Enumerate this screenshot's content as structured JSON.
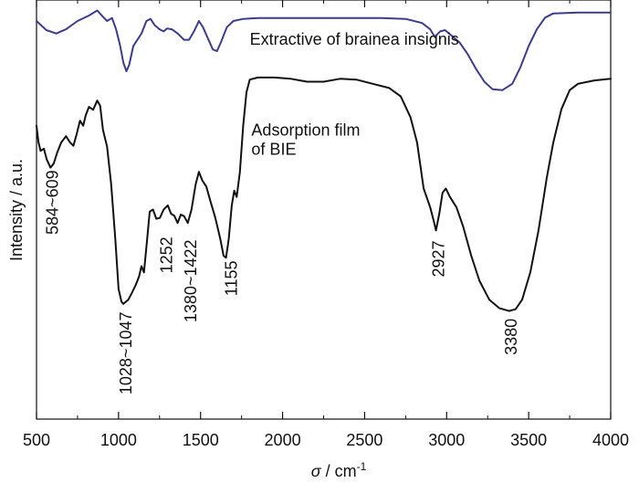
{
  "chart_data": {
    "type": "line",
    "title": "",
    "xlabel": "σ / cm",
    "xlabel_symbol": "σ",
    "xlabel_unit": " / cm",
    "xlabel_sup": "-1",
    "ylabel": "Intensity / a.u.",
    "xlim": [
      500,
      4000
    ],
    "x_ticks": [
      500,
      1000,
      1500,
      2000,
      2500,
      3000,
      3500,
      4000
    ],
    "y_ticks": [],
    "ylim": [
      0,
      1
    ],
    "grid": false,
    "series": [
      {
        "color": "#3c3c8f",
        "points": [
          [
            500,
            0.95
          ],
          [
            560,
            0.928
          ],
          [
            620,
            0.92
          ],
          [
            680,
            0.93
          ],
          [
            750,
            0.95
          ],
          [
            820,
            0.963
          ],
          [
            870,
            0.975
          ],
          [
            900,
            0.962
          ],
          [
            930,
            0.95
          ],
          [
            960,
            0.957
          ],
          [
            985,
            0.93
          ],
          [
            1010,
            0.89
          ],
          [
            1030,
            0.85
          ],
          [
            1048,
            0.83
          ],
          [
            1065,
            0.845
          ],
          [
            1090,
            0.89
          ],
          [
            1115,
            0.905
          ],
          [
            1140,
            0.92
          ],
          [
            1170,
            0.95
          ],
          [
            1195,
            0.955
          ],
          [
            1220,
            0.94
          ],
          [
            1250,
            0.93
          ],
          [
            1275,
            0.925
          ],
          [
            1295,
            0.932
          ],
          [
            1325,
            0.93
          ],
          [
            1360,
            0.92
          ],
          [
            1400,
            0.905
          ],
          [
            1430,
            0.905
          ],
          [
            1460,
            0.925
          ],
          [
            1490,
            0.95
          ],
          [
            1515,
            0.935
          ],
          [
            1545,
            0.908
          ],
          [
            1575,
            0.882
          ],
          [
            1600,
            0.878
          ],
          [
            1625,
            0.9
          ],
          [
            1660,
            0.935
          ],
          [
            1700,
            0.95
          ],
          [
            1760,
            0.955
          ],
          [
            1850,
            0.957
          ],
          [
            2000,
            0.957
          ],
          [
            2200,
            0.957
          ],
          [
            2400,
            0.957
          ],
          [
            2600,
            0.957
          ],
          [
            2750,
            0.955
          ],
          [
            2850,
            0.945
          ],
          [
            2900,
            0.93
          ],
          [
            2927,
            0.912
          ],
          [
            2960,
            0.925
          ],
          [
            2990,
            0.928
          ],
          [
            3030,
            0.915
          ],
          [
            3080,
            0.898
          ],
          [
            3130,
            0.87
          ],
          [
            3180,
            0.835
          ],
          [
            3230,
            0.805
          ],
          [
            3280,
            0.787
          ],
          [
            3340,
            0.785
          ],
          [
            3400,
            0.8
          ],
          [
            3450,
            0.84
          ],
          [
            3500,
            0.89
          ],
          [
            3550,
            0.93
          ],
          [
            3600,
            0.958
          ],
          [
            3650,
            0.968
          ],
          [
            3800,
            0.97
          ],
          [
            4000,
            0.97
          ]
        ]
      },
      {
        "color": "#111111",
        "points": [
          [
            500,
            0.7
          ],
          [
            512,
            0.66
          ],
          [
            525,
            0.64
          ],
          [
            545,
            0.645
          ],
          [
            562,
            0.62
          ],
          [
            585,
            0.6
          ],
          [
            605,
            0.61
          ],
          [
            625,
            0.635
          ],
          [
            650,
            0.66
          ],
          [
            680,
            0.675
          ],
          [
            705,
            0.66
          ],
          [
            725,
            0.652
          ],
          [
            745,
            0.68
          ],
          [
            765,
            0.712
          ],
          [
            785,
            0.7
          ],
          [
            800,
            0.725
          ],
          [
            820,
            0.745
          ],
          [
            845,
            0.738
          ],
          [
            870,
            0.76
          ],
          [
            888,
            0.748
          ],
          [
            905,
            0.69
          ],
          [
            930,
            0.65
          ],
          [
            955,
            0.56
          ],
          [
            980,
            0.43
          ],
          [
            1000,
            0.31
          ],
          [
            1018,
            0.28
          ],
          [
            1030,
            0.275
          ],
          [
            1045,
            0.28
          ],
          [
            1060,
            0.285
          ],
          [
            1080,
            0.3
          ],
          [
            1105,
            0.32
          ],
          [
            1125,
            0.34
          ],
          [
            1140,
            0.365
          ],
          [
            1155,
            0.35
          ],
          [
            1172,
            0.42
          ],
          [
            1190,
            0.495
          ],
          [
            1210,
            0.5
          ],
          [
            1230,
            0.478
          ],
          [
            1252,
            0.48
          ],
          [
            1275,
            0.5
          ],
          [
            1300,
            0.51
          ],
          [
            1320,
            0.49
          ],
          [
            1340,
            0.485
          ],
          [
            1360,
            0.468
          ],
          [
            1380,
            0.488
          ],
          [
            1400,
            0.484
          ],
          [
            1422,
            0.468
          ],
          [
            1445,
            0.5
          ],
          [
            1470,
            0.56
          ],
          [
            1490,
            0.59
          ],
          [
            1510,
            0.57
          ],
          [
            1535,
            0.555
          ],
          [
            1560,
            0.52
          ],
          [
            1590,
            0.48
          ],
          [
            1620,
            0.43
          ],
          [
            1640,
            0.39
          ],
          [
            1655,
            0.385
          ],
          [
            1672,
            0.43
          ],
          [
            1690,
            0.51
          ],
          [
            1705,
            0.545
          ],
          [
            1720,
            0.53
          ],
          [
            1740,
            0.59
          ],
          [
            1760,
            0.7
          ],
          [
            1780,
            0.78
          ],
          [
            1800,
            0.81
          ],
          [
            1850,
            0.815
          ],
          [
            1950,
            0.815
          ],
          [
            2050,
            0.812
          ],
          [
            2150,
            0.805
          ],
          [
            2250,
            0.805
          ],
          [
            2350,
            0.812
          ],
          [
            2450,
            0.81
          ],
          [
            2550,
            0.8
          ],
          [
            2650,
            0.79
          ],
          [
            2720,
            0.77
          ],
          [
            2780,
            0.72
          ],
          [
            2820,
            0.66
          ],
          [
            2860,
            0.55
          ],
          [
            2900,
            0.505
          ],
          [
            2920,
            0.475
          ],
          [
            2935,
            0.45
          ],
          [
            2955,
            0.49
          ],
          [
            2975,
            0.54
          ],
          [
            2995,
            0.55
          ],
          [
            3020,
            0.53
          ],
          [
            3060,
            0.505
          ],
          [
            3100,
            0.46
          ],
          [
            3150,
            0.39
          ],
          [
            3200,
            0.33
          ],
          [
            3260,
            0.285
          ],
          [
            3320,
            0.265
          ],
          [
            3380,
            0.258
          ],
          [
            3420,
            0.262
          ],
          [
            3460,
            0.285
          ],
          [
            3510,
            0.35
          ],
          [
            3560,
            0.45
          ],
          [
            3610,
            0.575
          ],
          [
            3650,
            0.66
          ],
          [
            3700,
            0.74
          ],
          [
            3750,
            0.785
          ],
          [
            3800,
            0.8
          ],
          [
            3900,
            0.808
          ],
          [
            4000,
            0.812
          ]
        ]
      }
    ],
    "text_labels": [
      {
        "text": "Extractive of brainea insignis",
        "x": 1800,
        "y": 0.893,
        "anchor": "start",
        "rotate": false
      },
      {
        "text": "Adsorption film",
        "x": 1810,
        "y": 0.676,
        "anchor": "start",
        "rotate": false
      },
      {
        "text": "of BIE",
        "x": 1810,
        "y": 0.631,
        "anchor": "start",
        "rotate": false
      }
    ],
    "annotations": [
      {
        "text": "584~609",
        "x": 630,
        "y": 0.594
      },
      {
        "text": "1028~1047",
        "x": 1080,
        "y": 0.256
      },
      {
        "text": "1252",
        "x": 1325,
        "y": 0.435
      },
      {
        "text": "1380~1422",
        "x": 1475,
        "y": 0.428
      },
      {
        "text": "1155",
        "x": 1720,
        "y": 0.378
      },
      {
        "text": "2927",
        "x": 2985,
        "y": 0.426
      },
      {
        "text": "3380",
        "x": 3427,
        "y": 0.24
      }
    ]
  }
}
